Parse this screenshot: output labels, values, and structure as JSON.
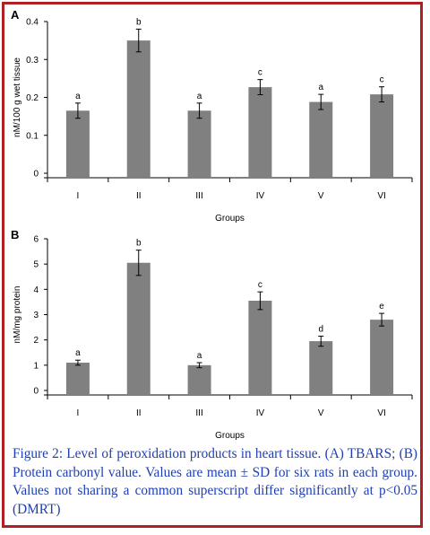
{
  "caption": "Figure 2: Level of peroxidation products in heart tissue. (A) TBARS; (B) Protein carbonyl value. Values are mean ± SD for six rats in each group. Values not sharing a common superscript differ significantly at p<0.05 (DMRT)",
  "colors": {
    "frame": "#b11f24",
    "bar": "#808080",
    "caption": "#1f3fb0"
  },
  "chart_data": [
    {
      "type": "bar",
      "panel": "A",
      "categories": [
        "I",
        "II",
        "III",
        "IV",
        "V",
        "VI"
      ],
      "values": [
        0.165,
        0.35,
        0.165,
        0.227,
        0.188,
        0.208
      ],
      "errors": [
        0.02,
        0.03,
        0.02,
        0.02,
        0.02,
        0.02
      ],
      "sig": [
        "a",
        "b",
        "a",
        "c",
        "a",
        "c"
      ],
      "xlabel": "Groups",
      "ylabel": "nM/100 g wet tissue",
      "ylim": [
        0,
        0.4
      ],
      "yticks": [
        0,
        0.1,
        0.2,
        0.3,
        0.4
      ],
      "ytick_labels": [
        "0",
        "0.1",
        "0.2",
        "0.3",
        "0.4"
      ],
      "grid": false
    },
    {
      "type": "bar",
      "panel": "B",
      "categories": [
        "I",
        "II",
        "III",
        "IV",
        "V",
        "VI"
      ],
      "values": [
        1.1,
        5.05,
        1.0,
        3.55,
        1.95,
        2.8
      ],
      "errors": [
        0.1,
        0.5,
        0.1,
        0.35,
        0.2,
        0.25
      ],
      "sig": [
        "a",
        "b",
        "a",
        "c",
        "d",
        "e"
      ],
      "xlabel": "Groups",
      "ylabel": "nM/mg protein",
      "ylim": [
        0,
        6
      ],
      "yticks": [
        0,
        1,
        2,
        3,
        4,
        5,
        6
      ],
      "ytick_labels": [
        "0",
        "1",
        "2",
        "3",
        "4",
        "5",
        "6"
      ],
      "grid": false
    }
  ]
}
